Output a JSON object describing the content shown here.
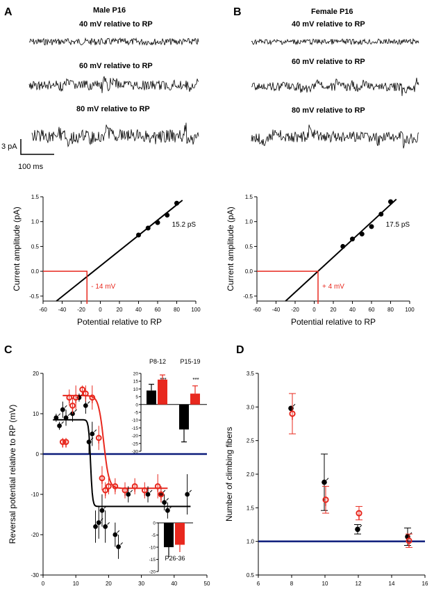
{
  "panels": {
    "A": {
      "letter": "A",
      "title": "Male P16",
      "trace_labels": [
        "40 mV relative to RP",
        "60 mV relative to RP",
        "80 mV relative to RP"
      ],
      "scale_y": "3 pA",
      "scale_x": "100 ms"
    },
    "B": {
      "letter": "B",
      "title": "Female P16",
      "trace_labels": [
        "40 mV relative to RP",
        "60 mV relative to RP",
        "80 mV relative to RP"
      ]
    },
    "C": {
      "letter": "C"
    },
    "D": {
      "letter": "D"
    }
  },
  "colors": {
    "black": "#000000",
    "red": "#e8281e",
    "blue": "#0a1a7a",
    "redtrace": "#e3201b"
  },
  "chart_data": [
    {
      "id": "iv-male",
      "type": "line",
      "xlabel": "Potential relative to RP",
      "ylabel": "Current amplitude (pA)",
      "xlim": [
        -60,
        100
      ],
      "ylim": [
        -0.6,
        1.5
      ],
      "xticks": [
        "-60",
        "-40",
        "-20",
        "0",
        "20",
        "40",
        "60",
        "80",
        "100"
      ],
      "yticks": [
        "-0.5",
        "0.0",
        "0.5",
        "1.0",
        "1.5"
      ],
      "points": {
        "x": [
          40,
          50,
          60,
          70,
          80
        ],
        "y": [
          0.73,
          0.87,
          0.98,
          1.13,
          1.37
        ]
      },
      "fit": {
        "x1": -46,
        "y1": -0.6,
        "x2": 86,
        "y2": 1.43
      },
      "reversal": {
        "x": -14,
        "label": "- 14 mV"
      },
      "conductance": "15.2 pS"
    },
    {
      "id": "iv-female",
      "type": "line",
      "xlabel": "Potential relative to RP",
      "ylabel": "Current amplitude (pA)",
      "xlim": [
        -60,
        100
      ],
      "ylim": [
        -0.6,
        1.5
      ],
      "xticks": [
        "-60",
        "-40",
        "-20",
        "0",
        "20",
        "40",
        "60",
        "80",
        "100"
      ],
      "yticks": [
        "-0.5",
        "0.0",
        "0.5",
        "1.0",
        "1.5"
      ],
      "points": {
        "x": [
          30,
          40,
          50,
          60,
          70,
          80
        ],
        "y": [
          0.5,
          0.65,
          0.75,
          0.9,
          1.15,
          1.4
        ]
      },
      "fit": {
        "x1": -30,
        "y1": -0.6,
        "x2": 86,
        "y2": 1.45
      },
      "reversal": {
        "x": 4,
        "label": "+ 4 mV"
      },
      "conductance": "17.5 pS"
    },
    {
      "id": "reversal-vs-age",
      "type": "scatter",
      "xlabel": "Age (days)",
      "ylabel": "Reversal potential relative to RP (mV)",
      "xlim": [
        0,
        50
      ],
      "ylim": [
        -30,
        20
      ],
      "xticks": [
        "0",
        "10",
        "20",
        "30",
        "40",
        "50"
      ],
      "yticks": [
        "-30",
        "-20",
        "-10",
        "0",
        "10",
        "20"
      ],
      "series": [
        {
          "name": "Male",
          "x": [
            4,
            5,
            6,
            7,
            9,
            11,
            13,
            14,
            15,
            16,
            17,
            18,
            19,
            22,
            23,
            26,
            32,
            36,
            37,
            38,
            44
          ],
          "y": [
            9,
            7,
            11,
            9,
            10,
            14,
            12,
            3,
            5,
            -18,
            -17,
            -14,
            -18,
            -20,
            -23,
            -10,
            -10,
            -10,
            -12,
            -14,
            -10
          ],
          "err": [
            1,
            1,
            2,
            2,
            2,
            1,
            2,
            3,
            3,
            4,
            4,
            4,
            4,
            3,
            3,
            2,
            2,
            2,
            2,
            2,
            5
          ]
        },
        {
          "name": "Female",
          "x": [
            6,
            7,
            8,
            9,
            10,
            12,
            13,
            15,
            17,
            18,
            19,
            20,
            22,
            25,
            28,
            31,
            35,
            36
          ],
          "y": [
            3,
            3,
            14,
            12,
            14,
            16,
            15,
            14,
            4,
            -6,
            -9,
            -8,
            -8,
            -9,
            -8,
            -9,
            -8,
            -10
          ],
          "err": [
            1,
            1,
            2,
            2,
            3,
            1,
            2,
            3,
            3,
            3,
            2,
            2,
            2,
            2,
            2,
            2,
            3,
            2
          ]
        }
      ],
      "zero_line": 0,
      "inset": {
        "type": "bar",
        "categories": [
          "P8-12",
          "P15-19"
        ],
        "series": [
          {
            "name": "Male",
            "values": [
              9,
              -16
            ],
            "err": [
              4,
              8
            ]
          },
          {
            "name": "Female",
            "values": [
              16,
              7
            ],
            "err": [
              3,
              5
            ]
          }
        ],
        "sig": [
          "***",
          "***"
        ],
        "ylim": [
          -30,
          20
        ],
        "yticks": [
          "-30",
          "-25",
          "-20",
          "-15",
          "-10",
          "-5",
          "0",
          "5",
          "10",
          "15",
          "20"
        ]
      },
      "inset2": {
        "type": "bar",
        "label": "P26-36",
        "series": [
          {
            "name": "Male",
            "value": -10,
            "err": 4
          },
          {
            "name": "Female",
            "value": -9,
            "err": 3
          }
        ],
        "ylim": [
          -20,
          0
        ],
        "yticks": [
          "-20",
          "-15",
          "-10",
          "-5",
          "0"
        ]
      }
    },
    {
      "id": "climbing-fibers",
      "type": "scatter",
      "xlabel": "Age (days)",
      "ylabel": "Number of climbing fibers",
      "xlim": [
        6,
        16
      ],
      "ylim": [
        0.5,
        3.5
      ],
      "xticks": [
        "6",
        "8",
        "10",
        "12",
        "14",
        "16"
      ],
      "yticks": [
        "0.5",
        "1.0",
        "1.5",
        "2.0",
        "2.5",
        "3.0",
        "3.5"
      ],
      "series": [
        {
          "name": "Male",
          "x": [
            8,
            10,
            12,
            15
          ],
          "y": [
            2.98,
            1.88,
            1.18,
            1.07
          ],
          "err": [
            0.0,
            0.42,
            0.07,
            0.13
          ]
        },
        {
          "name": "Female",
          "x": [
            8,
            10,
            12,
            15
          ],
          "y": [
            2.9,
            1.62,
            1.42,
            1.01
          ],
          "err": [
            0.3,
            0.2,
            0.1,
            0.1
          ]
        }
      ],
      "ref_line": 1.0
    }
  ]
}
